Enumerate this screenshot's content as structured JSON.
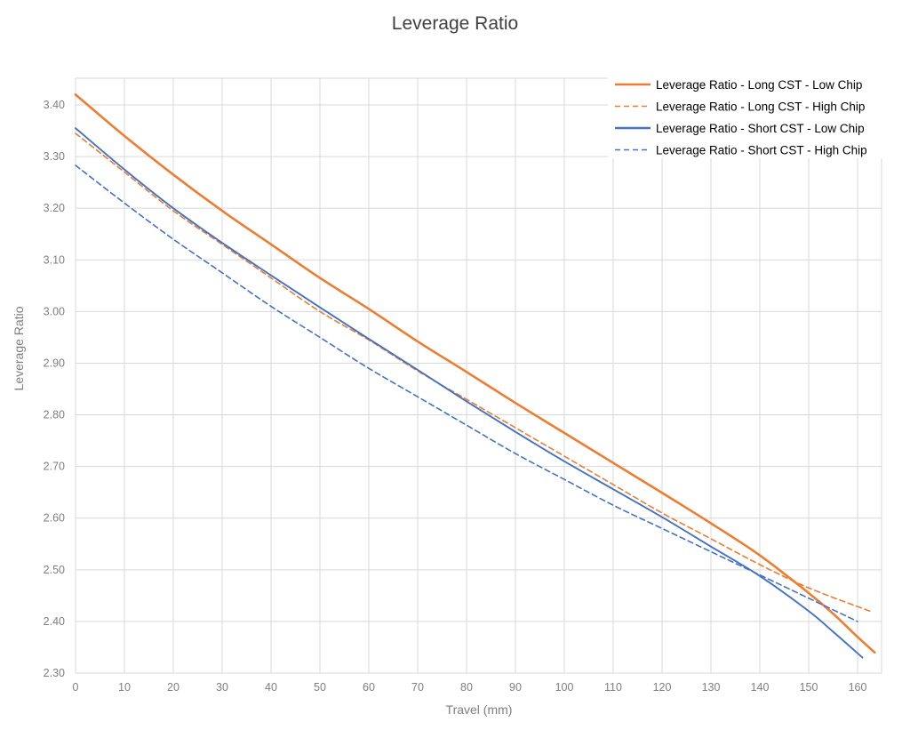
{
  "chart_data": {
    "type": "line",
    "title": "Leverage Ratio",
    "xlabel": "Travel (mm)",
    "ylabel": "Leverage Ratio",
    "xlim": [
      0,
      165
    ],
    "ylim": [
      2.3,
      3.45
    ],
    "x_ticks": [
      "0",
      "10",
      "20",
      "30",
      "40",
      "50",
      "60",
      "70",
      "80",
      "90",
      "100",
      "110",
      "120",
      "130",
      "140",
      "150",
      "160"
    ],
    "y_ticks": [
      "2.30",
      "2.40",
      "2.50",
      "2.60",
      "2.70",
      "2.80",
      "2.90",
      "3.00",
      "3.10",
      "3.20",
      "3.30",
      "3.40"
    ],
    "grid": true,
    "legend_position": "top-right",
    "series": [
      {
        "name": "Leverage Ratio - Long CST -  Low Chip",
        "color": "#ed7d31",
        "style": "solid",
        "x": [
          0,
          10,
          20,
          30,
          40,
          50,
          60,
          70,
          80,
          90,
          100,
          110,
          120,
          130,
          140,
          150,
          155,
          160,
          163.5
        ],
        "y": [
          3.42,
          3.34,
          3.265,
          3.195,
          3.13,
          3.065,
          3.005,
          2.942,
          2.883,
          2.823,
          2.765,
          2.707,
          2.649,
          2.59,
          2.528,
          2.455,
          2.415,
          2.37,
          2.34
        ]
      },
      {
        "name": "Leverage Ratio - Long CST - High Chip",
        "color": "#ed7d31",
        "style": "dashed",
        "x": [
          0,
          10,
          20,
          30,
          40,
          50,
          60,
          70,
          80,
          90,
          100,
          110,
          120,
          130,
          140,
          150,
          162.5
        ],
        "y": [
          3.345,
          3.27,
          3.195,
          3.13,
          3.065,
          3.0,
          2.945,
          2.885,
          2.83,
          2.775,
          2.72,
          2.665,
          2.61,
          2.56,
          2.51,
          2.465,
          2.42
        ]
      },
      {
        "name": "Leverage Ratio - Short CST -  Low Chip",
        "color": "#4472c4",
        "style": "solid",
        "x": [
          0,
          10,
          20,
          30,
          40,
          50,
          60,
          70,
          80,
          90,
          100,
          110,
          120,
          130,
          140,
          150,
          155,
          161
        ],
        "y": [
          3.355,
          3.275,
          3.2,
          3.133,
          3.07,
          3.008,
          2.947,
          2.887,
          2.826,
          2.767,
          2.71,
          2.656,
          2.602,
          2.545,
          2.488,
          2.42,
          2.38,
          2.33
        ]
      },
      {
        "name": "Leverage Ratio - Short CST -  High Chip",
        "color": "#4472c4",
        "style": "dashed",
        "x": [
          0,
          10,
          20,
          30,
          40,
          50,
          60,
          70,
          80,
          90,
          100,
          110,
          120,
          130,
          140,
          150,
          160
        ],
        "y": [
          3.283,
          3.21,
          3.14,
          3.075,
          3.01,
          2.95,
          2.89,
          2.835,
          2.78,
          2.725,
          2.675,
          2.625,
          2.58,
          2.535,
          2.49,
          2.445,
          2.4
        ]
      }
    ]
  }
}
